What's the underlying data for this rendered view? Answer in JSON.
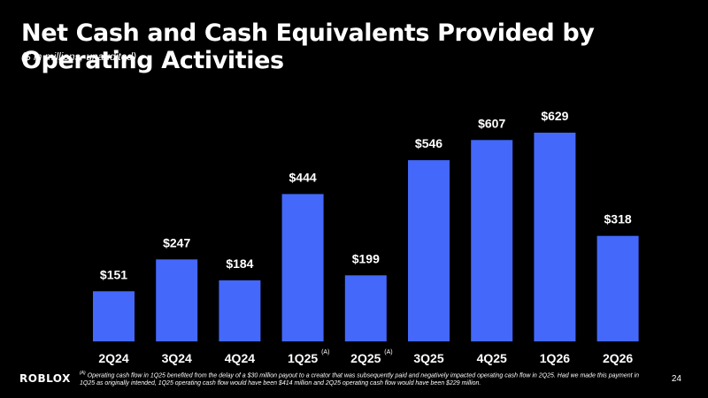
{
  "title": "Net Cash and Cash Equivalents Provided by Operating Activities",
  "subtitle": "($ in millions, unaudited)",
  "chart_data": {
    "type": "bar",
    "categories": [
      "2Q24",
      "3Q24",
      "4Q24",
      "1Q25",
      "2Q25",
      "3Q25",
      "4Q25",
      "1Q26",
      "2Q26"
    ],
    "category_notes": [
      "",
      "",
      "",
      "(A)",
      "(A)",
      "",
      "",
      "",
      ""
    ],
    "values": [
      151,
      247,
      184,
      444,
      199,
      546,
      607,
      629,
      318
    ],
    "value_labels": [
      "$151",
      "$247",
      "$184",
      "$444",
      "$199",
      "$546",
      "$607",
      "$629",
      "$318"
    ],
    "ylim": [
      0,
      700
    ],
    "grid": false,
    "bar_color": "#4368fa"
  },
  "footer": {
    "logo": "ROBLOX",
    "footnote_marker": "(A)",
    "footnote": "Operating cash flow in 1Q25 benefited from the delay of a $30 million payout to a creator that was subsequently paid and negatively impacted operating cash flow in 2Q25. Had we made this payment in 1Q25 as originally intended, 1Q25 operating cash flow would have been $414 million and 2Q25 operating cash flow would have been $229 million.",
    "page_number": "24"
  }
}
